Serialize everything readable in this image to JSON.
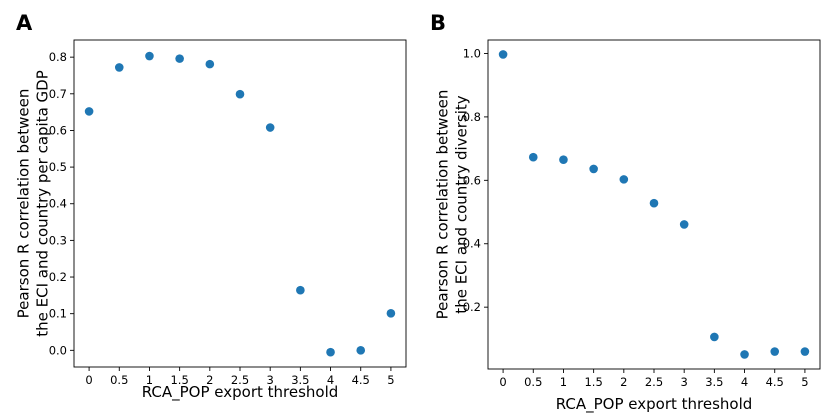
{
  "chart_data": [
    {
      "type": "scatter",
      "panel_label": "A",
      "xlabel": "RCA_POP export threshold",
      "ylabel_lines": [
        "Pearson R correlation between",
        "the ECI and country per capita GDP"
      ],
      "x": [
        0,
        0.5,
        1,
        1.5,
        2,
        2.5,
        3,
        3.5,
        4,
        4.5,
        5
      ],
      "y": [
        0.652,
        0.772,
        0.803,
        0.796,
        0.781,
        0.699,
        0.608,
        0.164,
        -0.005,
        0.0,
        0.101
      ],
      "xticks": [
        0,
        0.5,
        1,
        1.5,
        2,
        2.5,
        3,
        3.5,
        4,
        4.5,
        5
      ],
      "xtick_labels": [
        "0",
        "0.5",
        "1",
        "1.5",
        "2",
        "2.5",
        "3",
        "3.5",
        "4",
        "4.5",
        "5"
      ],
      "yticks": [
        0.0,
        0.1,
        0.2,
        0.3,
        0.4,
        0.5,
        0.6,
        0.7,
        0.8
      ],
      "ytick_labels": [
        "0.0",
        "0.1",
        "0.2",
        "0.3",
        "0.4",
        "0.5",
        "0.6",
        "0.7",
        "0.8"
      ],
      "xlim": [
        -0.25,
        5.25
      ],
      "ylim": [
        -0.0455,
        0.8468
      ],
      "marker_color": "#1f77b4",
      "grid": false
    },
    {
      "type": "scatter",
      "panel_label": "B",
      "xlabel": "RCA_POP export threshold",
      "ylabel_lines": [
        "Pearson R correlation between",
        "the ECI and country diversity"
      ],
      "x": [
        0,
        0.5,
        1,
        1.5,
        2,
        2.5,
        3,
        3.5,
        4,
        4.5,
        5
      ],
      "y": [
        0.997,
        0.673,
        0.665,
        0.636,
        0.603,
        0.528,
        0.461,
        0.106,
        0.051,
        0.06,
        0.06
      ],
      "xticks": [
        0,
        0.5,
        1,
        1.5,
        2,
        2.5,
        3,
        3.5,
        4,
        4.5,
        5
      ],
      "xtick_labels": [
        "0",
        "0.5",
        "1",
        "1.5",
        "2",
        "2.5",
        "3",
        "3.5",
        "4",
        "4.5",
        "5"
      ],
      "yticks": [
        0.2,
        0.4,
        0.6,
        0.8,
        1.0
      ],
      "ytick_labels": [
        "0.2",
        "0.4",
        "0.6",
        "0.8",
        "1.0"
      ],
      "xlim": [
        -0.25,
        5.25
      ],
      "ylim": [
        0.005,
        1.0425
      ],
      "marker_color": "#1f77b4",
      "grid": false
    }
  ]
}
